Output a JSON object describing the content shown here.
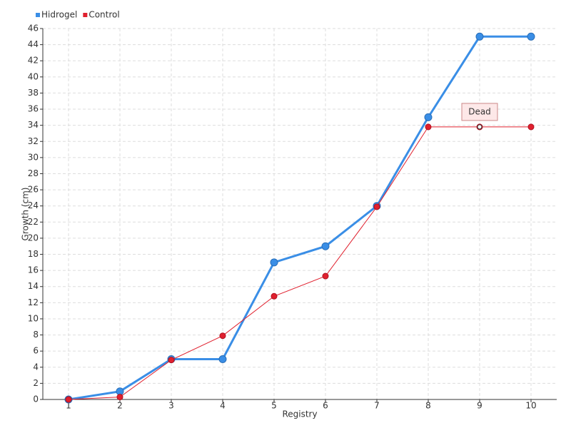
{
  "chart_data": {
    "type": "line",
    "x_label": "Registry",
    "y_label": "Growth (cm)",
    "x": [
      1,
      2,
      3,
      4,
      5,
      6,
      7,
      8,
      9,
      10
    ],
    "series": [
      {
        "name": "Hidrogel",
        "color": "#3a8ee6",
        "values": [
          0,
          1,
          5,
          5,
          17,
          19,
          24,
          35,
          45,
          45
        ]
      },
      {
        "name": "Control",
        "color": "#e0202e",
        "values": [
          0,
          0.3,
          4.9,
          7.9,
          12.8,
          15.3,
          23.9,
          33.8,
          33.8,
          33.8
        ]
      }
    ],
    "annotations": [
      {
        "text": "Dead",
        "x": 9,
        "y": 33.8
      }
    ],
    "xlim": [
      0.5,
      10.5
    ],
    "xticks": [
      1,
      2,
      3,
      4,
      5,
      6,
      7,
      8,
      9,
      10
    ],
    "ylim": [
      0,
      46
    ],
    "yticks": [
      0,
      2,
      4,
      6,
      8,
      10,
      12,
      14,
      16,
      18,
      20,
      22,
      24,
      26,
      28,
      30,
      32,
      34,
      36,
      38,
      40,
      42,
      44,
      46
    ],
    "grid": true,
    "legend": "top-left"
  }
}
